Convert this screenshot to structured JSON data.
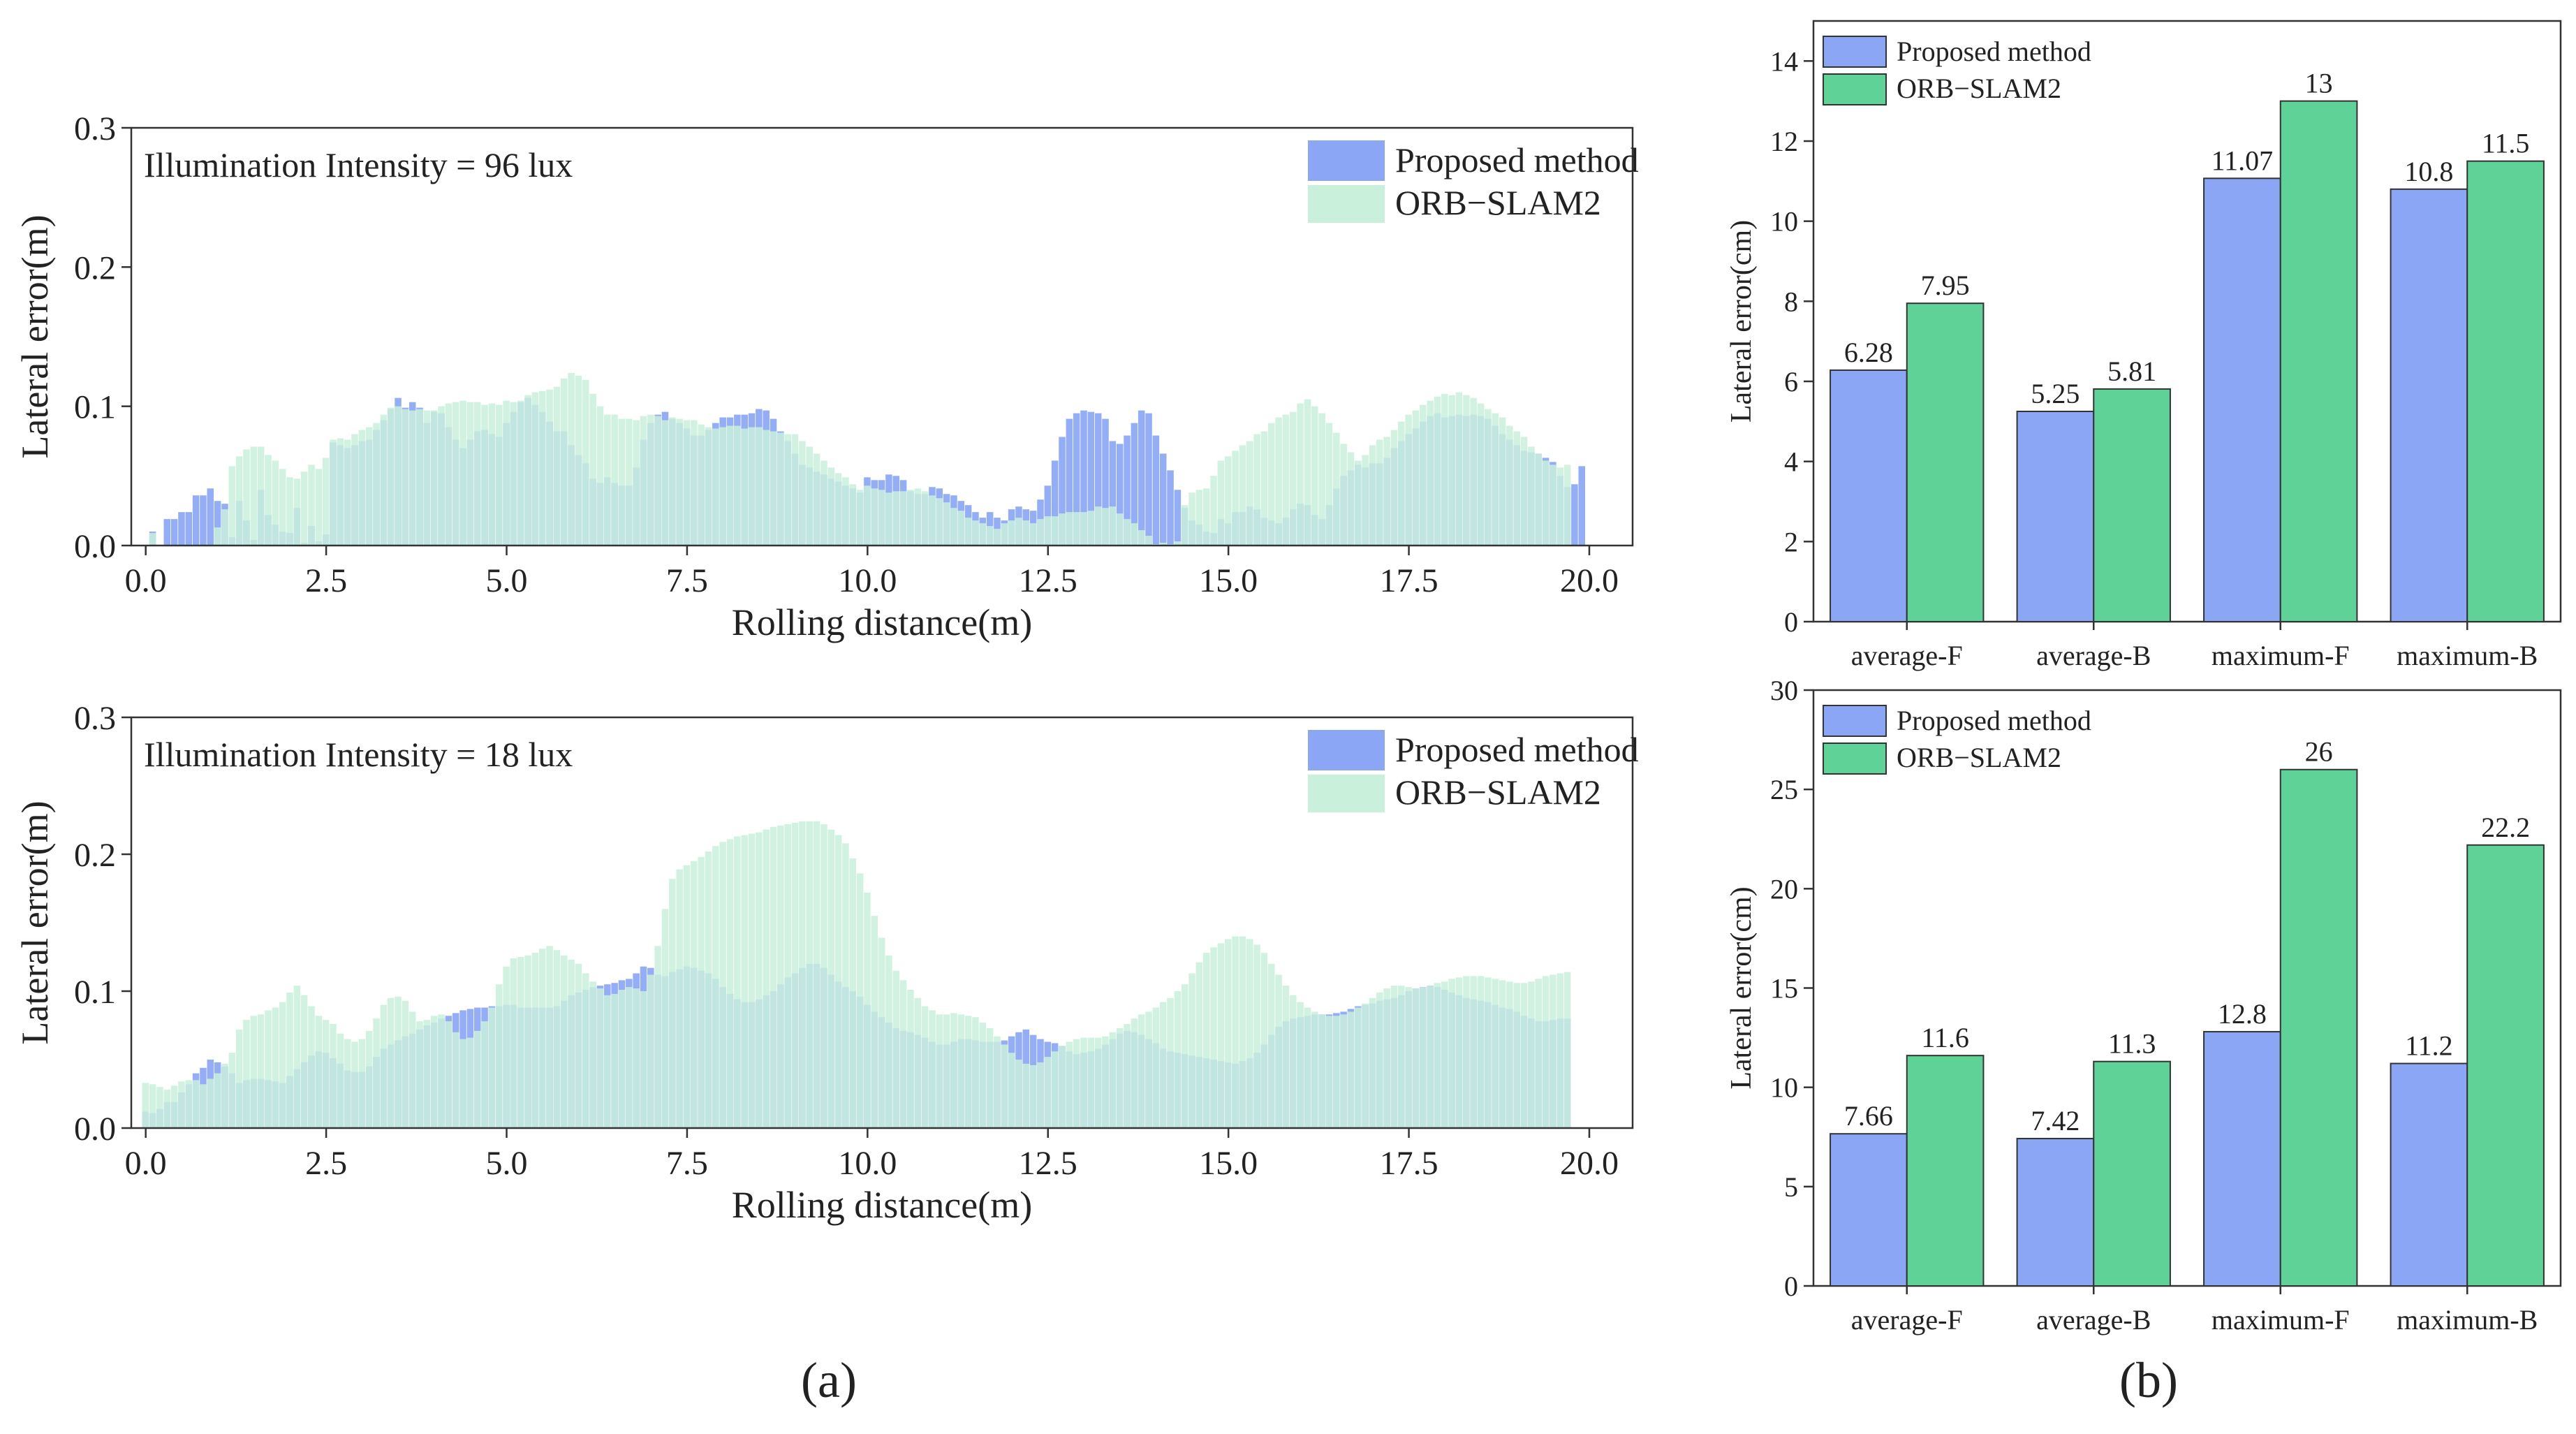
{
  "colors": {
    "proposed": "#8aa6f5",
    "orb": "#5fd297",
    "orb_light": "#c9f0db",
    "axis": "#333333",
    "text": "#222222"
  },
  "panel_labels": {
    "a": "(a)",
    "b": "(b)"
  },
  "chart_data": [
    {
      "id": "a-top",
      "type": "bar",
      "annotation": "Illumination Intensity = 96 lux",
      "xlabel": "Rolling distance(m)",
      "ylabel": "Lateral error(m)",
      "xlim": [
        -0.2,
        20.6
      ],
      "ylim": [
        0,
        0.3
      ],
      "xticks": [
        "0.0",
        "2.5",
        "5.0",
        "7.5",
        "10.0",
        "12.5",
        "15.0",
        "17.5",
        "20.0"
      ],
      "yticks": [
        "0.0",
        "0.1",
        "0.2",
        "0.3"
      ],
      "legend": {
        "position": "top-right",
        "entries": [
          "Proposed method",
          "ORB−SLAM2"
        ]
      },
      "series": [
        {
          "name": "Proposed method",
          "step": 0.1,
          "start": 0.0,
          "values": [
            0.0,
            0.01,
            0.0,
            0.019,
            0.019,
            0.024,
            0.024,
            0.036,
            0.036,
            0.041,
            0.032,
            0.03,
            0.006,
            0.032,
            0.018,
            0.004,
            0.04,
            0.022,
            0.015,
            0.01,
            0.009,
            0.027,
            0.002,
            0.014,
            0.003,
            0.008,
            0.074,
            0.072,
            0.07,
            0.072,
            0.075,
            0.076,
            0.083,
            0.09,
            0.098,
            0.106,
            0.099,
            0.103,
            0.099,
            0.088,
            0.096,
            0.095,
            0.085,
            0.076,
            0.07,
            0.076,
            0.082,
            0.083,
            0.08,
            0.078,
            0.088,
            0.096,
            0.103,
            0.106,
            0.101,
            0.096,
            0.089,
            0.082,
            0.082,
            0.072,
            0.065,
            0.059,
            0.048,
            0.045,
            0.049,
            0.045,
            0.043,
            0.043,
            0.056,
            0.076,
            0.088,
            0.094,
            0.096,
            0.091,
            0.088,
            0.084,
            0.079,
            0.079,
            0.083,
            0.088,
            0.092,
            0.092,
            0.094,
            0.094,
            0.095,
            0.098,
            0.097,
            0.091,
            0.082,
            0.075,
            0.066,
            0.058,
            0.056,
            0.053,
            0.051,
            0.048,
            0.046,
            0.043,
            0.041,
            0.038,
            0.049,
            0.047,
            0.047,
            0.051,
            0.05,
            0.047,
            0.039,
            0.037,
            0.037,
            0.042,
            0.041,
            0.037,
            0.036,
            0.032,
            0.029,
            0.024,
            0.02,
            0.024,
            0.02,
            0.018,
            0.026,
            0.028,
            0.026,
            0.025,
            0.033,
            0.043,
            0.061,
            0.078,
            0.091,
            0.095,
            0.097,
            0.096,
            0.095,
            0.091,
            0.075,
            0.073,
            0.079,
            0.088,
            0.097,
            0.095,
            0.079,
            0.066,
            0.054,
            0.04,
            0.027,
            0.018,
            0.015,
            0.01,
            0.009,
            0.019,
            0.016,
            0.024,
            0.024,
            0.028,
            0.026,
            0.02,
            0.018,
            0.016,
            0.02,
            0.026,
            0.03,
            0.029,
            0.022,
            0.019,
            0.029,
            0.041,
            0.05,
            0.054,
            0.058,
            0.056,
            0.059,
            0.059,
            0.063,
            0.07,
            0.075,
            0.08,
            0.084,
            0.089,
            0.093,
            0.095,
            0.092,
            0.093,
            0.094,
            0.093,
            0.094,
            0.093,
            0.091,
            0.086,
            0.08,
            0.076,
            0.072,
            0.068,
            0.067,
            0.066,
            0.063,
            0.06,
            0.05,
            0.042,
            0.044,
            0.057
          ]
        },
        {
          "name": "ORB−SLAM2",
          "step": 0.1,
          "start": 0.0,
          "values": [
            0.0,
            0.009,
            0.0,
            0.0,
            0.0,
            0.0,
            0.0,
            0.0,
            0.0,
            0.0,
            0.013,
            0.026,
            0.057,
            0.064,
            0.069,
            0.071,
            0.071,
            0.065,
            0.061,
            0.055,
            0.049,
            0.048,
            0.053,
            0.058,
            0.055,
            0.063,
            0.076,
            0.077,
            0.076,
            0.08,
            0.083,
            0.085,
            0.088,
            0.094,
            0.099,
            0.1,
            0.098,
            0.097,
            0.098,
            0.097,
            0.097,
            0.1,
            0.102,
            0.103,
            0.104,
            0.103,
            0.103,
            0.101,
            0.102,
            0.101,
            0.104,
            0.103,
            0.104,
            0.108,
            0.11,
            0.111,
            0.112,
            0.114,
            0.12,
            0.124,
            0.122,
            0.119,
            0.109,
            0.1,
            0.094,
            0.094,
            0.091,
            0.091,
            0.09,
            0.093,
            0.094,
            0.093,
            0.09,
            0.092,
            0.091,
            0.09,
            0.09,
            0.087,
            0.085,
            0.084,
            0.085,
            0.086,
            0.086,
            0.084,
            0.085,
            0.085,
            0.083,
            0.082,
            0.081,
            0.08,
            0.08,
            0.075,
            0.071,
            0.066,
            0.061,
            0.056,
            0.052,
            0.049,
            0.044,
            0.04,
            0.043,
            0.041,
            0.04,
            0.038,
            0.039,
            0.039,
            0.04,
            0.041,
            0.039,
            0.036,
            0.034,
            0.031,
            0.027,
            0.025,
            0.02,
            0.018,
            0.016,
            0.014,
            0.012,
            0.016,
            0.018,
            0.02,
            0.018,
            0.016,
            0.019,
            0.021,
            0.021,
            0.023,
            0.024,
            0.024,
            0.024,
            0.025,
            0.028,
            0.027,
            0.028,
            0.023,
            0.019,
            0.016,
            0.011,
            0.007,
            0.001,
            0.002,
            0.001,
            0.003,
            0.029,
            0.038,
            0.04,
            0.041,
            0.05,
            0.061,
            0.064,
            0.068,
            0.072,
            0.075,
            0.08,
            0.082,
            0.088,
            0.092,
            0.094,
            0.096,
            0.102,
            0.105,
            0.1,
            0.095,
            0.088,
            0.081,
            0.073,
            0.067,
            0.061,
            0.065,
            0.072,
            0.076,
            0.078,
            0.083,
            0.089,
            0.094,
            0.097,
            0.101,
            0.104,
            0.107,
            0.109,
            0.108,
            0.11,
            0.108,
            0.106,
            0.102,
            0.098,
            0.095,
            0.092,
            0.086,
            0.082,
            0.078,
            0.071,
            0.066,
            0.061,
            0.058,
            0.056,
            0.058
          ]
        }
      ]
    },
    {
      "id": "a-bottom",
      "type": "bar",
      "annotation": "Illumination Intensity = 18 lux",
      "xlabel": "Rolling distance(m)",
      "ylabel": "Lateral error(m)",
      "xlim": [
        -0.2,
        20.6
      ],
      "ylim": [
        0,
        0.3
      ],
      "xticks": [
        "0.0",
        "2.5",
        "5.0",
        "7.5",
        "10.0",
        "12.5",
        "15.0",
        "17.5",
        "20.0"
      ],
      "yticks": [
        "0.0",
        "0.1",
        "0.2",
        "0.3"
      ],
      "legend": {
        "position": "top-right",
        "entries": [
          "Proposed method",
          "ORB−SLAM2"
        ]
      },
      "series": [
        {
          "name": "Proposed method",
          "step": 0.1,
          "start": 0.0,
          "values": [
            0.012,
            0.011,
            0.014,
            0.019,
            0.019,
            0.026,
            0.032,
            0.04,
            0.044,
            0.05,
            0.048,
            0.045,
            0.04,
            0.033,
            0.035,
            0.036,
            0.036,
            0.035,
            0.034,
            0.033,
            0.038,
            0.043,
            0.048,
            0.053,
            0.056,
            0.055,
            0.051,
            0.047,
            0.042,
            0.041,
            0.041,
            0.045,
            0.052,
            0.058,
            0.061,
            0.064,
            0.067,
            0.069,
            0.072,
            0.075,
            0.077,
            0.08,
            0.082,
            0.084,
            0.086,
            0.087,
            0.088,
            0.088,
            0.089,
            0.089,
            0.09,
            0.09,
            0.088,
            0.088,
            0.088,
            0.088,
            0.088,
            0.089,
            0.093,
            0.097,
            0.099,
            0.101,
            0.103,
            0.104,
            0.105,
            0.106,
            0.108,
            0.109,
            0.113,
            0.118,
            0.117,
            0.112,
            0.111,
            0.114,
            0.116,
            0.118,
            0.117,
            0.115,
            0.113,
            0.109,
            0.103,
            0.098,
            0.094,
            0.092,
            0.092,
            0.094,
            0.097,
            0.1,
            0.105,
            0.11,
            0.113,
            0.117,
            0.12,
            0.12,
            0.117,
            0.112,
            0.107,
            0.103,
            0.1,
            0.096,
            0.09,
            0.085,
            0.081,
            0.077,
            0.073,
            0.071,
            0.07,
            0.068,
            0.066,
            0.063,
            0.061,
            0.061,
            0.063,
            0.065,
            0.065,
            0.064,
            0.063,
            0.063,
            0.063,
            0.064,
            0.067,
            0.07,
            0.072,
            0.068,
            0.065,
            0.063,
            0.062,
            0.06,
            0.056,
            0.054,
            0.055,
            0.056,
            0.058,
            0.061,
            0.065,
            0.069,
            0.071,
            0.07,
            0.068,
            0.065,
            0.062,
            0.058,
            0.056,
            0.055,
            0.054,
            0.053,
            0.052,
            0.051,
            0.05,
            0.049,
            0.048,
            0.047,
            0.049,
            0.051,
            0.055,
            0.061,
            0.068,
            0.074,
            0.078,
            0.08,
            0.081,
            0.082,
            0.083,
            0.083,
            0.083,
            0.084,
            0.085,
            0.087,
            0.089,
            0.09,
            0.091,
            0.093,
            0.094,
            0.095,
            0.097,
            0.1,
            0.102,
            0.103,
            0.104,
            0.103,
            0.101,
            0.099,
            0.097,
            0.095,
            0.094,
            0.093,
            0.092,
            0.09,
            0.088,
            0.087,
            0.085,
            0.082,
            0.08,
            0.078,
            0.078,
            0.079,
            0.08,
            0.08
          ]
        },
        {
          "name": "ORB−SLAM2",
          "step": 0.1,
          "start": 0.0,
          "values": [
            0.033,
            0.032,
            0.03,
            0.028,
            0.031,
            0.034,
            0.035,
            0.035,
            0.032,
            0.036,
            0.04,
            0.047,
            0.055,
            0.072,
            0.079,
            0.082,
            0.083,
            0.086,
            0.088,
            0.092,
            0.099,
            0.104,
            0.097,
            0.089,
            0.082,
            0.079,
            0.076,
            0.069,
            0.065,
            0.063,
            0.065,
            0.071,
            0.08,
            0.09,
            0.095,
            0.096,
            0.093,
            0.085,
            0.078,
            0.079,
            0.082,
            0.083,
            0.078,
            0.07,
            0.065,
            0.066,
            0.071,
            0.078,
            0.088,
            0.105,
            0.118,
            0.124,
            0.125,
            0.126,
            0.128,
            0.131,
            0.133,
            0.13,
            0.126,
            0.123,
            0.12,
            0.113,
            0.107,
            0.102,
            0.097,
            0.098,
            0.101,
            0.103,
            0.102,
            0.1,
            0.112,
            0.133,
            0.16,
            0.182,
            0.189,
            0.192,
            0.195,
            0.198,
            0.202,
            0.206,
            0.209,
            0.211,
            0.213,
            0.214,
            0.215,
            0.216,
            0.218,
            0.22,
            0.221,
            0.222,
            0.223,
            0.224,
            0.224,
            0.224,
            0.222,
            0.218,
            0.214,
            0.208,
            0.197,
            0.186,
            0.172,
            0.155,
            0.139,
            0.126,
            0.115,
            0.108,
            0.101,
            0.095,
            0.089,
            0.086,
            0.083,
            0.083,
            0.084,
            0.083,
            0.082,
            0.081,
            0.077,
            0.073,
            0.067,
            0.061,
            0.055,
            0.05,
            0.047,
            0.046,
            0.048,
            0.052,
            0.056,
            0.06,
            0.063,
            0.065,
            0.066,
            0.066,
            0.066,
            0.067,
            0.07,
            0.073,
            0.076,
            0.08,
            0.083,
            0.085,
            0.088,
            0.092,
            0.095,
            0.1,
            0.105,
            0.113,
            0.121,
            0.128,
            0.132,
            0.135,
            0.138,
            0.14,
            0.14,
            0.138,
            0.134,
            0.128,
            0.12,
            0.112,
            0.104,
            0.097,
            0.092,
            0.088,
            0.085,
            0.083,
            0.082,
            0.082,
            0.083,
            0.085,
            0.088,
            0.091,
            0.095,
            0.099,
            0.102,
            0.104,
            0.104,
            0.103,
            0.102,
            0.103,
            0.104,
            0.106,
            0.107,
            0.109,
            0.11,
            0.111,
            0.111,
            0.111,
            0.11,
            0.109,
            0.108,
            0.107,
            0.106,
            0.106,
            0.107,
            0.109,
            0.111,
            0.112,
            0.113,
            0.114
          ]
        }
      ]
    },
    {
      "id": "b-top",
      "type": "bar",
      "categories": [
        "average-F",
        "average-B",
        "maximum-F",
        "maximum-B"
      ],
      "ylabel": "Lateral error(cm)",
      "ylim": [
        0,
        15
      ],
      "yticks": [
        0,
        2,
        4,
        6,
        8,
        10,
        12,
        14
      ],
      "legend": {
        "position": "top-left",
        "entries": [
          "Proposed method",
          "ORB−SLAM2"
        ]
      },
      "series": [
        {
          "name": "Proposed method",
          "values": [
            6.28,
            5.25,
            11.07,
            10.8
          ],
          "labels": [
            "6.28",
            "5.25",
            "11.07",
            "10.8"
          ]
        },
        {
          "name": "ORB−SLAM2",
          "values": [
            7.95,
            5.81,
            13,
            11.5
          ],
          "labels": [
            "7.95",
            "5.81",
            "13",
            "11.5"
          ]
        }
      ]
    },
    {
      "id": "b-bottom",
      "type": "bar",
      "categories": [
        "average-F",
        "average-B",
        "maximum-F",
        "maximum-B"
      ],
      "ylabel": "Lateral error(cm)",
      "ylim": [
        0,
        30
      ],
      "yticks": [
        0,
        5,
        10,
        15,
        20,
        25,
        30
      ],
      "legend": {
        "position": "top-left",
        "entries": [
          "Proposed method",
          "ORB−SLAM2"
        ]
      },
      "series": [
        {
          "name": "Proposed method",
          "values": [
            7.66,
            7.42,
            12.8,
            11.2
          ],
          "labels": [
            "7.66",
            "7.42",
            "12.8",
            "11.2"
          ]
        },
        {
          "name": "ORB−SLAM2",
          "values": [
            11.6,
            11.3,
            26,
            22.2
          ],
          "labels": [
            "11.6",
            "11.3",
            "26",
            "22.2"
          ]
        }
      ]
    }
  ]
}
